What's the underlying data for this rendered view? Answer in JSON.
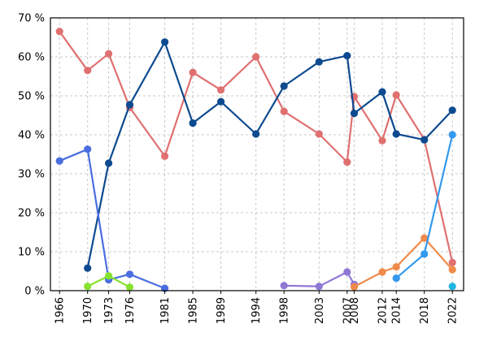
{
  "chart_data": {
    "type": "line",
    "title": "",
    "xlabel": "",
    "ylabel": "",
    "grid": true,
    "legend": "none",
    "ylim": [
      0,
      70
    ],
    "y_ticks": [
      "0 %",
      "10 %",
      "20 %",
      "30 %",
      "40 %",
      "50 %",
      "60 %",
      "70 %"
    ],
    "x_ticks": [
      "1966",
      "1970",
      "1973",
      "1976",
      "1981",
      "1985",
      "1989",
      "1994",
      "1998",
      "2003",
      "2007",
      "2008",
      "2012",
      "2014",
      "2018",
      "2022"
    ],
    "series": [
      {
        "color": "#e07070",
        "points": [
          [
            1966,
            66.5
          ],
          [
            1970,
            56.5
          ],
          [
            1973,
            60.8
          ],
          [
            1976,
            47
          ],
          [
            1981,
            34.5
          ],
          [
            1985,
            56
          ],
          [
            1989,
            51.5
          ],
          [
            1994,
            60
          ],
          [
            1998,
            46
          ],
          [
            2003,
            40.2
          ],
          [
            2007,
            33
          ],
          [
            2008,
            49.8
          ],
          [
            2012,
            38.5
          ],
          [
            2014,
            50.2
          ],
          [
            2018,
            38.8
          ],
          [
            2022,
            7.2
          ]
        ]
      },
      {
        "color": "#0d4a8f",
        "points": [
          [
            1970,
            5.8
          ],
          [
            1973,
            32.7
          ],
          [
            1976,
            47.7
          ],
          [
            1981,
            63.8
          ],
          [
            1985,
            43
          ],
          [
            1989,
            48.5
          ],
          [
            1994,
            40.2
          ],
          [
            1998,
            52.5
          ],
          [
            2003,
            58.7
          ],
          [
            2007,
            60.3
          ],
          [
            2008,
            45.5
          ],
          [
            2012,
            51
          ],
          [
            2014,
            40.2
          ],
          [
            2018,
            38.7
          ],
          [
            2022,
            46.3
          ]
        ]
      },
      {
        "color": "#4a6ee0",
        "points": [
          [
            1966,
            33.3
          ],
          [
            1970,
            36.3
          ],
          [
            1973,
            2.8
          ],
          [
            1976,
            4.2
          ],
          [
            1981,
            0.6
          ]
        ]
      },
      {
        "color": "#86e22e",
        "points": [
          [
            1970,
            1.1
          ],
          [
            1973,
            3.8
          ],
          [
            1976,
            0.9
          ]
        ]
      },
      {
        "color": "#8f77d6",
        "points": [
          [
            1998,
            1.3
          ],
          [
            2003,
            1.1
          ],
          [
            2007,
            4.8
          ],
          [
            2008,
            1.6
          ]
        ]
      },
      {
        "color": "#ef8a4a",
        "points": [
          [
            2008,
            1.0
          ],
          [
            2012,
            4.8
          ],
          [
            2014,
            6.1
          ],
          [
            2018,
            13.5
          ],
          [
            2022,
            5.4
          ]
        ]
      },
      {
        "color": "#3399ee",
        "points": [
          [
            2014,
            3.2
          ],
          [
            2018,
            9.4
          ],
          [
            2022,
            40
          ]
        ]
      },
      {
        "color": "#21b6e2",
        "points": [
          [
            2022,
            1.1
          ]
        ]
      }
    ]
  }
}
